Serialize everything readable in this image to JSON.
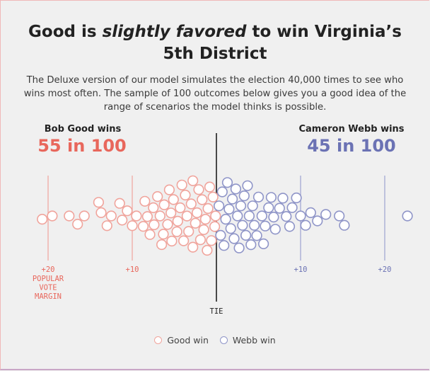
{
  "headline": {
    "pre": "Good is ",
    "emph": "slightly favored",
    "post": " to win Virginia’s 5th District"
  },
  "subtitle": "The Deluxe version of our model simulates the election 40,000 times to see who wins most often. The sample of 100 outcomes below gives you a good idea of the range of scenarios the model thinks is possible.",
  "left_candidate": {
    "label": "Bob Good wins",
    "count": "55 in 100",
    "color": "#e8675c"
  },
  "right_candidate": {
    "label": "Cameron Webb wins",
    "count": "45 in 100",
    "color": "#6b72b4"
  },
  "axis": {
    "ticks": [
      {
        "value": -20,
        "label": "+20",
        "side": "good"
      },
      {
        "value": -10,
        "label": "+10",
        "side": "good"
      },
      {
        "value": 10,
        "label": "+10",
        "side": "webb"
      },
      {
        "value": 20,
        "label": "+20",
        "side": "webb"
      }
    ],
    "axis_title": [
      "POPULAR",
      "VOTE",
      "MARGIN"
    ],
    "tie_label": "TIE"
  },
  "legend": {
    "good": "Good win",
    "webb": "Webb win"
  },
  "chart_data": {
    "type": "scatter",
    "description_x": "popular vote margin, negative = Good, positive = Webb",
    "xlim": [
      -21,
      23
    ],
    "good_outcomes": 55,
    "webb_outcomes": 45,
    "good_margins": [
      -20.7,
      -19.5,
      -17.5,
      -16.5,
      -15.7,
      -14.0,
      -13.7,
      -13.0,
      -12.5,
      -11.5,
      -11.2,
      -10.6,
      -10.0,
      -9.5,
      -8.7,
      -8.5,
      -8.2,
      -7.9,
      -7.5,
      -7.4,
      -7.0,
      -6.7,
      -6.5,
      -6.3,
      -6.2,
      -5.8,
      -5.6,
      -5.4,
      -5.3,
      -5.1,
      -4.7,
      -4.6,
      -4.3,
      -4.1,
      -3.9,
      -3.7,
      -3.5,
      -3.3,
      -3.0,
      -2.8,
      -2.8,
      -2.5,
      -2.3,
      -2.1,
      -1.9,
      -1.7,
      -1.5,
      -1.3,
      -1.1,
      -1.0,
      -0.8,
      -0.6,
      -0.4,
      -0.2,
      -0.1
    ],
    "webb_margins": [
      0.3,
      0.5,
      0.7,
      0.9,
      1.1,
      1.3,
      1.5,
      1.7,
      1.9,
      2.1,
      2.3,
      2.5,
      2.7,
      2.9,
      3.1,
      3.3,
      3.5,
      3.7,
      3.9,
      4.1,
      4.3,
      4.5,
      4.8,
      5.0,
      5.4,
      5.6,
      5.8,
      6.2,
      6.5,
      6.8,
      7.0,
      7.5,
      7.9,
      8.3,
      8.7,
      9.0,
      9.5,
      10.0,
      10.6,
      11.2,
      12.0,
      13.0,
      14.6,
      15.2,
      22.7
    ]
  }
}
